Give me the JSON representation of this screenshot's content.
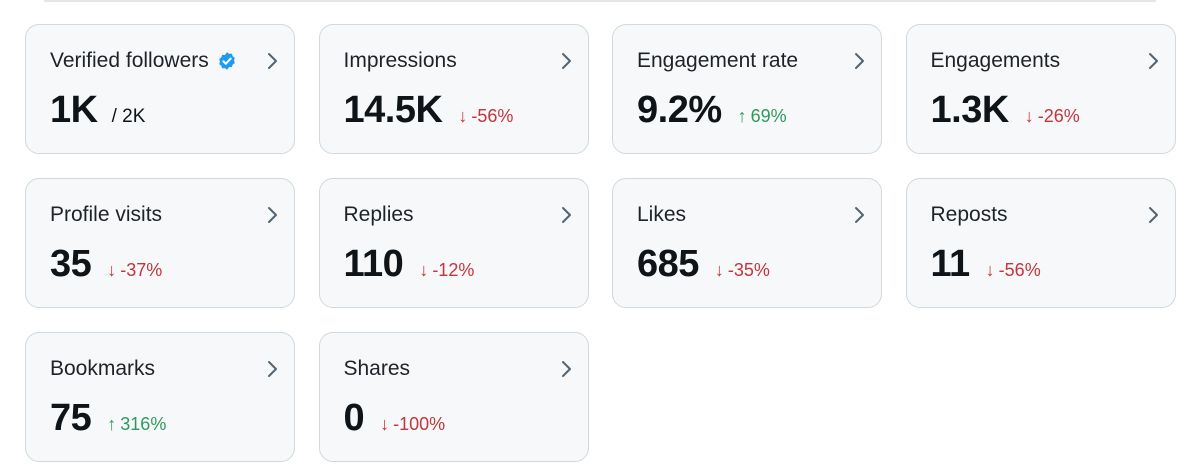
{
  "cards": [
    {
      "label": "Verified followers",
      "value": "1K",
      "secondary": "/ 2K",
      "verified": true
    },
    {
      "label": "Impressions",
      "value": "14.5K",
      "change": "-56%",
      "direction": "down",
      "arrow": "↓"
    },
    {
      "label": "Engagement rate",
      "value": "9.2%",
      "change": "69%",
      "direction": "up",
      "arrow": "↑"
    },
    {
      "label": "Engagements",
      "value": "1.3K",
      "change": "-26%",
      "direction": "down",
      "arrow": "↓"
    },
    {
      "label": "Profile visits",
      "value": "35",
      "change": "-37%",
      "direction": "down",
      "arrow": "↓"
    },
    {
      "label": "Replies",
      "value": "110",
      "change": "-12%",
      "direction": "down",
      "arrow": "↓"
    },
    {
      "label": "Likes",
      "value": "685",
      "change": "-35%",
      "direction": "down",
      "arrow": "↓"
    },
    {
      "label": "Reposts",
      "value": "11",
      "change": "-56%",
      "direction": "down",
      "arrow": "↓"
    },
    {
      "label": "Bookmarks",
      "value": "75",
      "change": "316%",
      "direction": "up",
      "arrow": "↑"
    },
    {
      "label": "Shares",
      "value": "0",
      "change": "-100%",
      "direction": "down",
      "arrow": "↓"
    }
  ],
  "colors": {
    "down": "#c0363d",
    "up": "#2e9a5b",
    "verified": "#1d9bf0",
    "card_border": "#cfd9de",
    "card_bg": "#f6f8f9"
  },
  "icons": {
    "chevron": "chevron-right-icon",
    "verified": "verified-badge-icon"
  }
}
